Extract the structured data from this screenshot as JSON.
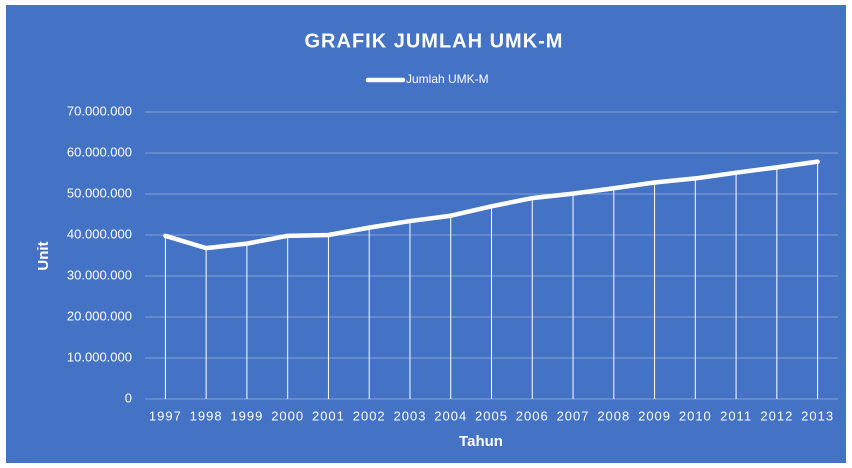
{
  "chart_data": {
    "type": "line",
    "title": "GRAFIK JUMLAH UMK-M",
    "x_label": "Tahun",
    "y_label": "Unit",
    "categories": [
      "1997",
      "1998",
      "1999",
      "2000",
      "2001",
      "2002",
      "2003",
      "2004",
      "2005",
      "2006",
      "2007",
      "2008",
      "2009",
      "2010",
      "2011",
      "2012",
      "2013"
    ],
    "series": [
      {
        "name": "Jumlah UMK-M",
        "color": "#ffffff",
        "values": [
          39800000,
          36800000,
          37900000,
          39800000,
          40000000,
          41800000,
          43400000,
          44700000,
          47000000,
          49000000,
          50100000,
          51400000,
          52800000,
          53800000,
          55200000,
          56500000,
          57900000
        ]
      }
    ],
    "ylim": [
      0,
      70000000
    ],
    "yticks": [
      0,
      {
        "value": 10000000,
        "label": "10.000.000"
      },
      {
        "value": 20000000,
        "label": "20.000.000"
      },
      {
        "value": 30000000,
        "label": "30.000.000"
      },
      {
        "value": 40000000,
        "label": "40.000.000"
      },
      {
        "value": 50000000,
        "label": "50.000.000"
      },
      {
        "value": 60000000,
        "label": "60.000.000"
      },
      {
        "value": 70000000,
        "label": "70.000.000"
      }
    ],
    "grid": true,
    "drop_lines": true,
    "legend": "top",
    "background": "#4472c4"
  }
}
